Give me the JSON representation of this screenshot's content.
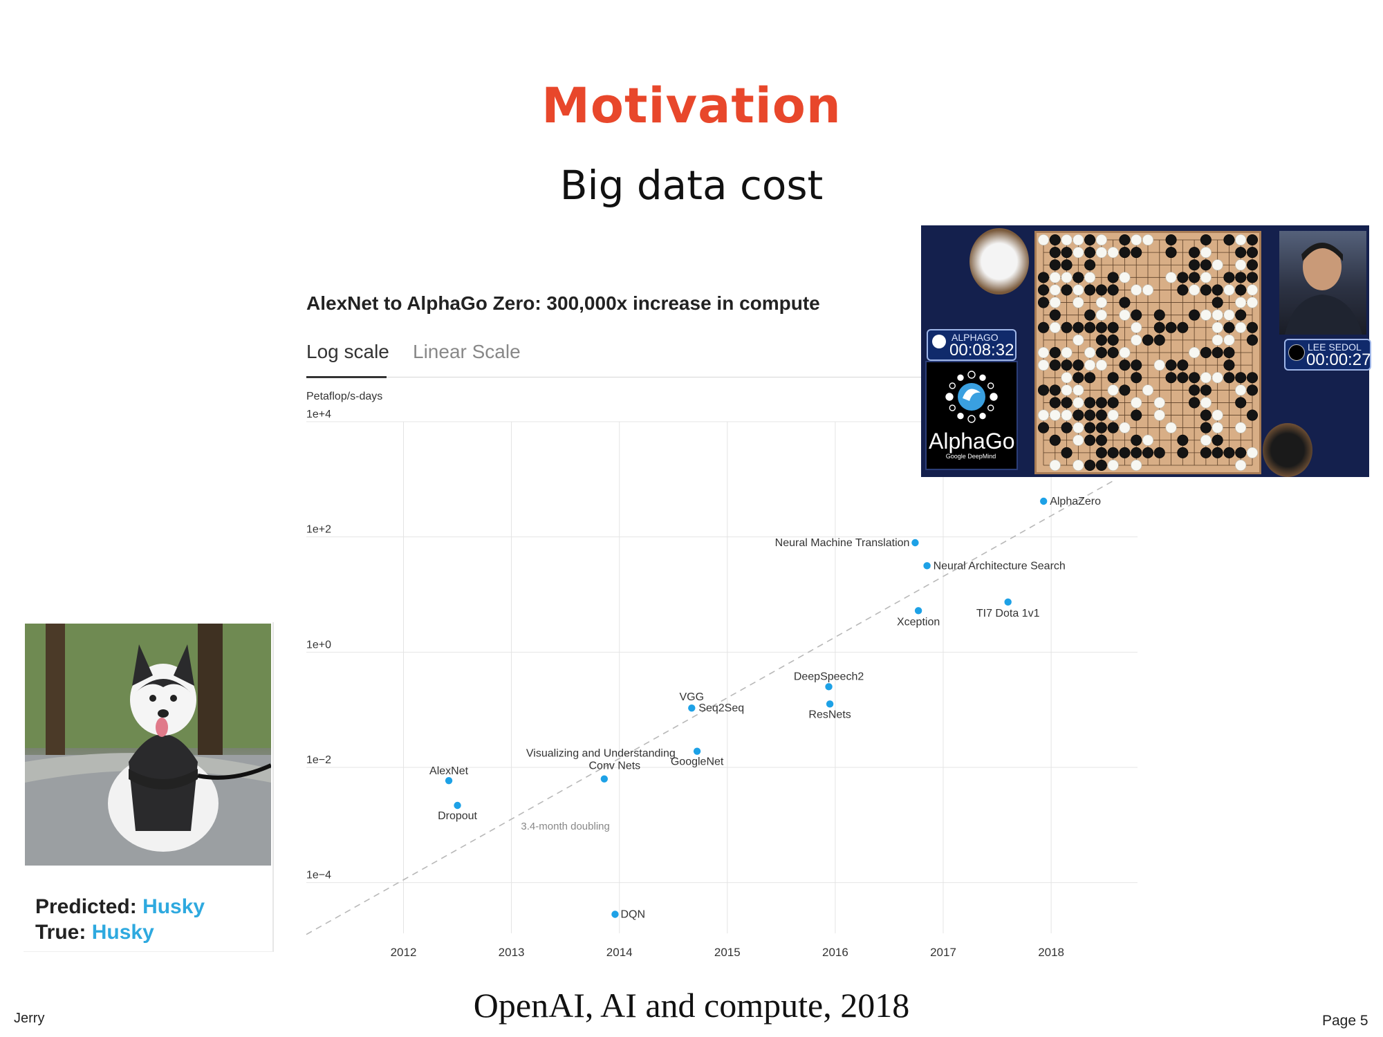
{
  "slide": {
    "title": "Motivation",
    "subtitle": "Big data cost",
    "citation": "OpenAI, AI and compute, 2018",
    "author": "Jerry",
    "page": "Page 5"
  },
  "chart_header": {
    "title": "AlexNet to AlphaGo Zero: 300,000x increase in compute",
    "tab_active": "Log scale",
    "tab_inactive": "Linear Scale",
    "unit": "Petaflop/s-days"
  },
  "chart_data": {
    "type": "scatter",
    "title": "AlexNet to AlphaGo Zero: 300,000x increase in compute",
    "ylabel": "Petaflop/s-days",
    "y_scale": "log",
    "y_log10_range": [
      -5,
      4
    ],
    "y_ticks": [
      {
        "log10": 4,
        "label": "1e+4"
      },
      {
        "log10": 2,
        "label": "1e+2"
      },
      {
        "log10": 0,
        "label": "1e+0"
      },
      {
        "log10": -2,
        "label": "1e−2"
      },
      {
        "log10": -4,
        "label": "1e−4"
      }
    ],
    "x_range": [
      2011.1,
      2018.8
    ],
    "x_ticks": [
      2012,
      2013,
      2014,
      2015,
      2016,
      2017,
      2018
    ],
    "grid": true,
    "trend": {
      "label": "3.4-month doubling",
      "from": {
        "x": 2011.1,
        "log10": -4.9
      },
      "to": {
        "x": 2018.6,
        "log10": 3.0
      }
    },
    "points": [
      {
        "name": "AlexNet",
        "x": 2012.42,
        "log10": -2.23
      },
      {
        "name": "Dropout",
        "x": 2012.5,
        "log10": -2.66
      },
      {
        "name": "Visualizing and Understanding Conv Nets",
        "x": 2013.86,
        "log10": -2.2
      },
      {
        "name": "DQN",
        "x": 2013.96,
        "log10": -4.55
      },
      {
        "name": "VGG",
        "x": 2014.67,
        "log10": -0.97
      },
      {
        "name": "Seq2Seq",
        "x": 2014.67,
        "log10": -0.97
      },
      {
        "name": "GoogleNet",
        "x": 2014.72,
        "log10": -1.72
      },
      {
        "name": "DeepSpeech2",
        "x": 2015.94,
        "log10": -0.6
      },
      {
        "name": "ResNets",
        "x": 2015.95,
        "log10": -0.9
      },
      {
        "name": "Neural Machine Translation",
        "x": 2016.74,
        "log10": 1.9
      },
      {
        "name": "Neural Architecture Search",
        "x": 2016.85,
        "log10": 1.5
      },
      {
        "name": "Xception",
        "x": 2016.77,
        "log10": 0.72
      },
      {
        "name": "TI7 Dota 1v1",
        "x": 2017.6,
        "log10": 0.87
      },
      {
        "name": "AlphaZero",
        "x": 2017.93,
        "log10": 2.62
      }
    ]
  },
  "alphago_image": {
    "player1_name": "ALPHAGO",
    "player1_time": "00:08:32",
    "player2_name": "LEE SEDOL",
    "player2_time": "00:00:27",
    "logo_text": "AlphaGo",
    "logo_subtext": "Google DeepMind"
  },
  "husky_card": {
    "predicted_label": "Predicted:",
    "predicted_value": "Husky",
    "true_label": "True:",
    "true_value": "Husky"
  },
  "colors": {
    "title": "#e8472b",
    "point": "#1da1e6",
    "husky_value": "#2ea9df",
    "grid": "#e4e4e4"
  }
}
